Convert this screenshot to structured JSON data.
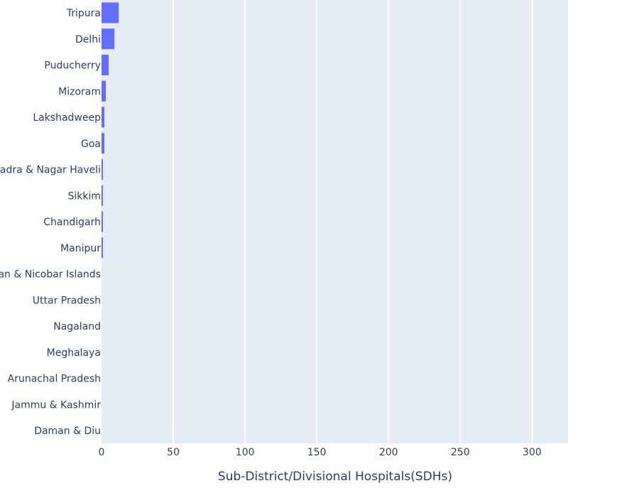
{
  "chart_data": {
    "type": "bar",
    "orientation": "horizontal",
    "title": "",
    "xlabel": "Sub-District/Divisional Hospitals(SDHs)",
    "ylabel": "",
    "xlim": [
      0,
      325
    ],
    "x_ticks": [
      0,
      50,
      100,
      150,
      200,
      250,
      300
    ],
    "grid": true,
    "bar_color": "#636efa",
    "plot_bg_color": "#e5ecf6",
    "categories": [
      "Tripura",
      "Delhi",
      "Puducherry",
      "Mizoram",
      "Lakshadweep",
      "Goa",
      "Dadra & Nagar Haveli",
      "Sikkim",
      "Chandigarh",
      "Manipur",
      "Andaman & Nicobar Islands",
      "Uttar Pradesh",
      "Nagaland",
      "Meghalaya",
      "Arunachal Pradesh",
      "Jammu & Kashmir",
      "Daman & Diu"
    ],
    "values": [
      12,
      9,
      5,
      3,
      2,
      2,
      1,
      1,
      1,
      1,
      0,
      0,
      0,
      0,
      0,
      0,
      0
    ]
  }
}
